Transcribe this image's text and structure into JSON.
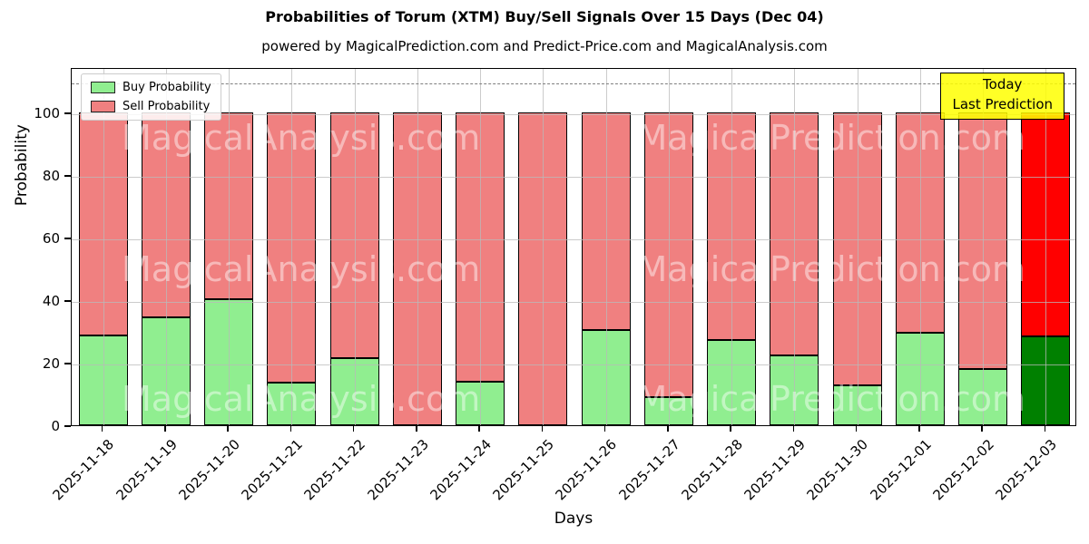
{
  "title": "Probabilities of Torum (XTM) Buy/Sell Signals Over 15 Days (Dec 04)",
  "subtitle": "powered by MagicalPrediction.com and Predict-Price.com and MagicalAnalysis.com",
  "annotation": {
    "line1": "Today",
    "line2": "Last Prediction"
  },
  "legend": [
    {
      "label": "Buy Probability",
      "color": "#90ee90"
    },
    {
      "label": "Sell Probability",
      "color": "#f08080"
    }
  ],
  "watermarks": {
    "left": "MagicalAnalysis.com",
    "right": "MagicalPrediction.com"
  },
  "colors": {
    "buy": "#90ee90",
    "sell": "#f08080",
    "today_buy": "#008000",
    "today_sell": "#ff0000",
    "bar_edge": "#000000",
    "annotation_bg": "#ffff00"
  },
  "chart_data": {
    "type": "bar",
    "stacked": true,
    "title": "Probabilities of Torum (XTM) Buy/Sell Signals Over 15 Days (Dec 04)",
    "xlabel": "Days",
    "ylabel": "Probability",
    "ylim": [
      0,
      114.5
    ],
    "yticks": [
      0,
      20,
      40,
      60,
      80,
      100
    ],
    "grid": true,
    "legend_position": "upper left",
    "dashed_line_y": 110,
    "categories": [
      "2025-11-18",
      "2025-11-19",
      "2025-11-20",
      "2025-11-21",
      "2025-11-22",
      "2025-11-23",
      "2025-11-24",
      "2025-11-25",
      "2025-11-26",
      "2025-11-27",
      "2025-11-28",
      "2025-11-29",
      "2025-11-30",
      "2025-12-01",
      "2025-12-02",
      "2025-12-03"
    ],
    "series": [
      {
        "name": "Buy Probability",
        "values": [
          28.8,
          34.6,
          40.4,
          13.7,
          21.4,
          0.0,
          14.0,
          0.0,
          30.5,
          9.0,
          27.2,
          22.4,
          12.7,
          29.5,
          18.1,
          28.5
        ]
      },
      {
        "name": "Sell Probability",
        "values": [
          71.2,
          65.4,
          59.6,
          86.3,
          78.6,
          100.0,
          86.0,
          100.0,
          69.5,
          91.0,
          72.8,
          77.6,
          87.3,
          70.5,
          81.9,
          71.5
        ]
      }
    ],
    "today_index": 15
  }
}
